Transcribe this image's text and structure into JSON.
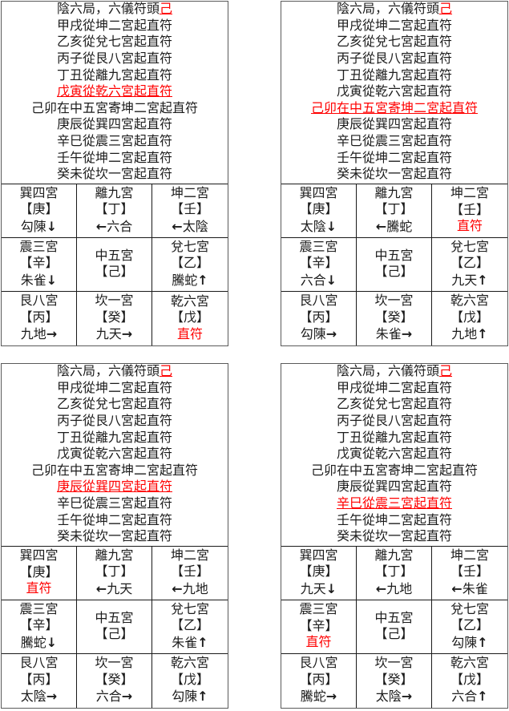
{
  "page": {
    "background": "#ffffff",
    "text_color": "#1c1c1c",
    "highlight_color": "#ff0000",
    "border_outer": "#5a5a5a",
    "border_inner": "#1a1a1a"
  },
  "shared_header": {
    "title_prefix": "陰六局，六儀符頭",
    "title_stem": "己"
  },
  "panels": [
    {
      "name": "qimen-panel-1",
      "lines": [
        {
          "text": "甲戌從坤二宮起直符",
          "highlight": false
        },
        {
          "text": "乙亥從兌七宮起直符",
          "highlight": false
        },
        {
          "text": "丙子從艮八宮起直符",
          "highlight": false
        },
        {
          "text": "丁丑從離九宮起直符",
          "highlight": false
        },
        {
          "text": "戊寅從乾六宮起直符",
          "highlight": true
        },
        {
          "text": "己卯在中五宮寄坤二宮起直符",
          "highlight": false
        },
        {
          "text": "庚辰從巽四宮起直符",
          "highlight": false
        },
        {
          "text": "辛巳從震三宮起直符",
          "highlight": false
        },
        {
          "text": "壬午從坤二宮起直符",
          "highlight": false
        },
        {
          "text": "癸未從坎一宮起直符",
          "highlight": false
        }
      ],
      "cells": [
        {
          "palace": "巽四宮",
          "stem": "【庚】",
          "arrow_before": "",
          "deity": "勾陳",
          "arrow_after": "↓",
          "red": false
        },
        {
          "palace": "離九宮",
          "stem": "【丁】",
          "arrow_before": "←",
          "deity": "六合",
          "arrow_after": "",
          "red": false
        },
        {
          "palace": "坤二宮",
          "stem": "【壬】",
          "arrow_before": "←",
          "deity": "太陰",
          "arrow_after": "",
          "red": false
        },
        {
          "palace": "震三宮",
          "stem": "【辛】",
          "arrow_before": "",
          "deity": "朱雀",
          "arrow_after": "↓",
          "red": false
        },
        {
          "palace": "中五宮",
          "stem": "【己】",
          "arrow_before": "",
          "deity": "",
          "arrow_after": "",
          "red": false
        },
        {
          "palace": "兌七宮",
          "stem": "【乙】",
          "arrow_before": "",
          "deity": "騰蛇",
          "arrow_after": "↑",
          "red": false
        },
        {
          "palace": "艮八宮",
          "stem": "【丙】",
          "arrow_before": "",
          "deity": "九地",
          "arrow_after": "→",
          "red": false
        },
        {
          "palace": "坎一宮",
          "stem": "【癸】",
          "arrow_before": "",
          "deity": "九天",
          "arrow_after": "→",
          "red": false
        },
        {
          "palace": "乾六宮",
          "stem": "【戊】",
          "arrow_before": "",
          "deity": "直符",
          "arrow_after": "",
          "red": true
        }
      ]
    },
    {
      "name": "qimen-panel-2",
      "lines": [
        {
          "text": "甲戌從坤二宮起直符",
          "highlight": false
        },
        {
          "text": "乙亥從兌七宮起直符",
          "highlight": false
        },
        {
          "text": "丙子從艮八宮起直符",
          "highlight": false
        },
        {
          "text": "丁丑從離九宮起直符",
          "highlight": false
        },
        {
          "text": "戊寅從乾六宮起直符",
          "highlight": false
        },
        {
          "text": "己卯在中五宮寄坤二宮起直符",
          "highlight": true
        },
        {
          "text": "庚辰從巽四宮起直符",
          "highlight": false
        },
        {
          "text": "辛巳從震三宮起直符",
          "highlight": false
        },
        {
          "text": "壬午從坤二宮起直符",
          "highlight": false
        },
        {
          "text": "癸未從坎一宮起直符",
          "highlight": false
        }
      ],
      "cells": [
        {
          "palace": "巽四宮",
          "stem": "【庚】",
          "arrow_before": "",
          "deity": "太陰",
          "arrow_after": "↓",
          "red": false
        },
        {
          "palace": "離九宮",
          "stem": "【丁】",
          "arrow_before": "←",
          "deity": "騰蛇",
          "arrow_after": "",
          "red": false
        },
        {
          "palace": "坤二宮",
          "stem": "【壬】",
          "arrow_before": "",
          "deity": "直符",
          "arrow_after": "",
          "red": true
        },
        {
          "palace": "震三宮",
          "stem": "【辛】",
          "arrow_before": "",
          "deity": "六合",
          "arrow_after": "↓",
          "red": false
        },
        {
          "palace": "中五宮",
          "stem": "【己】",
          "arrow_before": "",
          "deity": "",
          "arrow_after": "",
          "red": false
        },
        {
          "palace": "兌七宮",
          "stem": "【乙】",
          "arrow_before": "",
          "deity": "九天",
          "arrow_after": "↑",
          "red": false
        },
        {
          "palace": "艮八宮",
          "stem": "【丙】",
          "arrow_before": "",
          "deity": "勾陳",
          "arrow_after": "→",
          "red": false
        },
        {
          "palace": "坎一宮",
          "stem": "【癸】",
          "arrow_before": "",
          "deity": "朱雀",
          "arrow_after": "→",
          "red": false
        },
        {
          "palace": "乾六宮",
          "stem": "【戊】",
          "arrow_before": "",
          "deity": "九地",
          "arrow_after": "↑",
          "red": false
        }
      ]
    },
    {
      "name": "qimen-panel-3",
      "lines": [
        {
          "text": "甲戌從坤二宮起直符",
          "highlight": false
        },
        {
          "text": "乙亥從兌七宮起直符",
          "highlight": false
        },
        {
          "text": "丙子從艮八宮起直符",
          "highlight": false
        },
        {
          "text": "丁丑從離九宮起直符",
          "highlight": false
        },
        {
          "text": "戊寅從乾六宮起直符",
          "highlight": false
        },
        {
          "text": "己卯在中五宮寄坤二宮起直符",
          "highlight": false
        },
        {
          "text": "庚辰從巽四宮起直符",
          "highlight": true
        },
        {
          "text": "辛巳從震三宮起直符",
          "highlight": false
        },
        {
          "text": "壬午從坤二宮起直符",
          "highlight": false
        },
        {
          "text": "癸未從坎一宮起直符",
          "highlight": false
        }
      ],
      "cells": [
        {
          "palace": "巽四宮",
          "stem": "【庚】",
          "arrow_before": "",
          "deity": "直符",
          "arrow_after": "",
          "red": true
        },
        {
          "palace": "離九宮",
          "stem": "【丁】",
          "arrow_before": "←",
          "deity": "九天",
          "arrow_after": "",
          "red": false
        },
        {
          "palace": "坤二宮",
          "stem": "【壬】",
          "arrow_before": "←",
          "deity": "九地",
          "arrow_after": "",
          "red": false
        },
        {
          "palace": "震三宮",
          "stem": "【辛】",
          "arrow_before": "",
          "deity": "騰蛇",
          "arrow_after": "↓",
          "red": false
        },
        {
          "palace": "中五宮",
          "stem": "【己】",
          "arrow_before": "",
          "deity": "",
          "arrow_after": "",
          "red": false
        },
        {
          "palace": "兌七宮",
          "stem": "【乙】",
          "arrow_before": "",
          "deity": "朱雀",
          "arrow_after": "↑",
          "red": false
        },
        {
          "palace": "艮八宮",
          "stem": "【丙】",
          "arrow_before": "",
          "deity": "太陰",
          "arrow_after": "→",
          "red": false
        },
        {
          "palace": "坎一宮",
          "stem": "【癸】",
          "arrow_before": "",
          "deity": "六合",
          "arrow_after": "→",
          "red": false
        },
        {
          "palace": "乾六宮",
          "stem": "【戊】",
          "arrow_before": "",
          "deity": "勾陳",
          "arrow_after": "↑",
          "red": false
        }
      ]
    },
    {
      "name": "qimen-panel-4",
      "lines": [
        {
          "text": "甲戌從坤二宮起直符",
          "highlight": false
        },
        {
          "text": "乙亥從兌七宮起直符",
          "highlight": false
        },
        {
          "text": "丙子從艮八宮起直符",
          "highlight": false
        },
        {
          "text": "丁丑從離九宮起直符",
          "highlight": false
        },
        {
          "text": "戊寅從乾六宮起直符",
          "highlight": false
        },
        {
          "text": "己卯在中五宮寄坤二宮起直符",
          "highlight": false
        },
        {
          "text": "庚辰從巽四宮起直符",
          "highlight": false
        },
        {
          "text": "辛巳從震三宮起直符",
          "highlight": true
        },
        {
          "text": "壬午從坤二宮起直符",
          "highlight": false
        },
        {
          "text": "癸未從坎一宮起直符",
          "highlight": false
        }
      ],
      "cells": [
        {
          "palace": "巽四宮",
          "stem": "【庚】",
          "arrow_before": "",
          "deity": "九天",
          "arrow_after": "↓",
          "red": false
        },
        {
          "palace": "離九宮",
          "stem": "【丁】",
          "arrow_before": "←",
          "deity": "九地",
          "arrow_after": "",
          "red": false
        },
        {
          "palace": "坤二宮",
          "stem": "【壬】",
          "arrow_before": "←",
          "deity": "朱雀",
          "arrow_after": "",
          "red": false
        },
        {
          "palace": "震三宮",
          "stem": "【辛】",
          "arrow_before": "",
          "deity": "直符",
          "arrow_after": "",
          "red": true
        },
        {
          "palace": "中五宮",
          "stem": "【己】",
          "arrow_before": "",
          "deity": "",
          "arrow_after": "",
          "red": false
        },
        {
          "palace": "兌七宮",
          "stem": "【乙】",
          "arrow_before": "",
          "deity": "勾陳",
          "arrow_after": "↑",
          "red": false
        },
        {
          "palace": "艮八宮",
          "stem": "【丙】",
          "arrow_before": "",
          "deity": "騰蛇",
          "arrow_after": "→",
          "red": false
        },
        {
          "palace": "坎一宮",
          "stem": "【癸】",
          "arrow_before": "",
          "deity": "太陰",
          "arrow_after": "→",
          "red": false
        },
        {
          "palace": "乾六宮",
          "stem": "【戊】",
          "arrow_before": "",
          "deity": "六合",
          "arrow_after": "↑",
          "red": false
        }
      ]
    }
  ]
}
